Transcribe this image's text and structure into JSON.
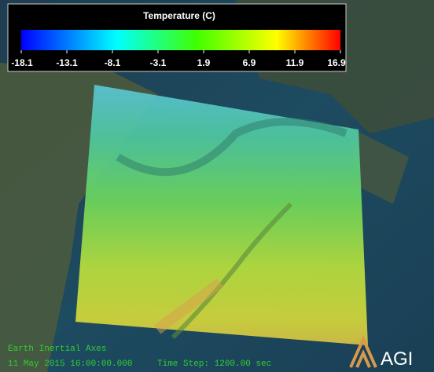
{
  "legend": {
    "title": "Temperature (C)",
    "ticks": [
      -18.1,
      -13.1,
      -8.1,
      -3.1,
      1.9,
      6.9,
      11.9,
      16.9
    ]
  },
  "overlay": {
    "frame": "Earth Inertial Axes",
    "time": "11 May 2015 16:00:00.000",
    "time_step": "Time Step: 1200.00 sec",
    "logo": "AGI"
  }
}
